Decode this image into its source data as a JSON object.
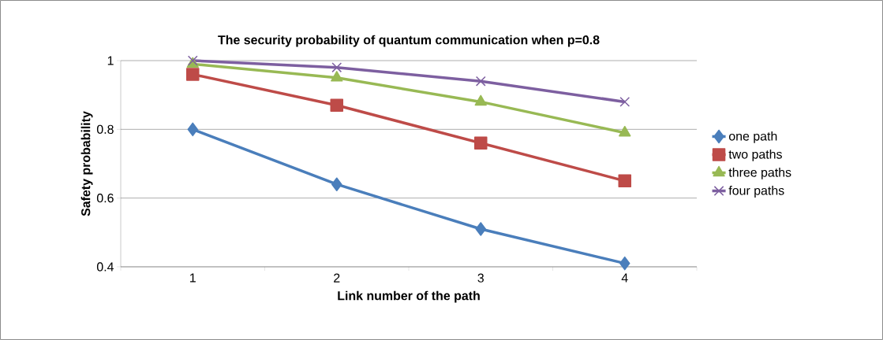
{
  "chart_data": {
    "type": "line",
    "title": "The security probability of quantum communication when p=0.8",
    "xlabel": "Link number of the path",
    "ylabel": "Safety probability",
    "categories": [
      "1",
      "2",
      "3",
      "4"
    ],
    "series": [
      {
        "name": "one path",
        "color": "#4a7ebb",
        "marker": "diamond",
        "values": [
          0.8,
          0.64,
          0.51,
          0.41
        ]
      },
      {
        "name": "two paths",
        "color": "#be4b48",
        "marker": "square",
        "values": [
          0.96,
          0.87,
          0.76,
          0.65
        ]
      },
      {
        "name": "three paths",
        "color": "#98b954",
        "marker": "triangle",
        "values": [
          0.99,
          0.95,
          0.88,
          0.79
        ]
      },
      {
        "name": "four paths",
        "color": "#7d5fa0",
        "marker": "cross",
        "values": [
          1.0,
          0.98,
          0.94,
          0.88
        ]
      }
    ],
    "ylim": [
      0.4,
      1
    ],
    "yticks": [
      0.4,
      0.6,
      0.8,
      1
    ],
    "grid": "y",
    "legend": "right",
    "line_style": "solid"
  }
}
